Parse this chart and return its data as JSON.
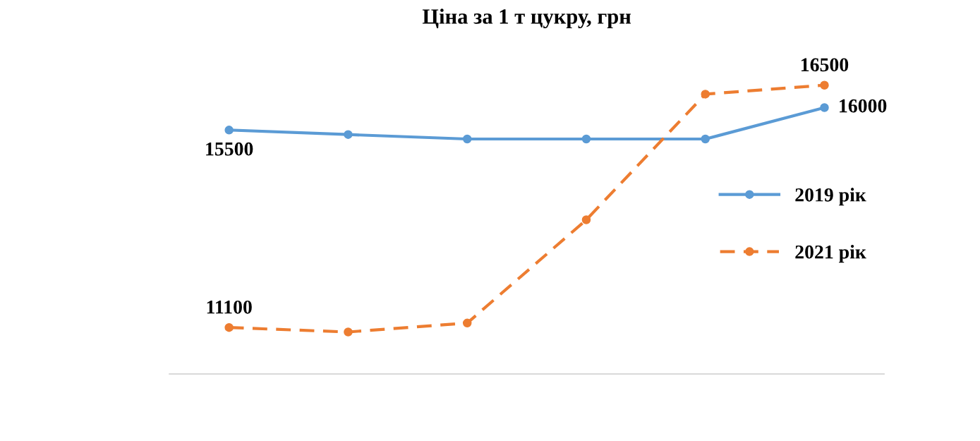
{
  "chart_data": {
    "type": "line",
    "title": "Ціна за 1 т цукру, грн",
    "categories": [
      null,
      null,
      null,
      null,
      null,
      null
    ],
    "legend": "right",
    "marker": "circle",
    "series": [
      {
        "name": "2019 рік",
        "color": "#5b9bd5",
        "line_style": "solid",
        "values": [
          15500,
          15400,
          15300,
          15300,
          15300,
          16000
        ],
        "value_labels": [
          "15500",
          null,
          null,
          null,
          null,
          "16000"
        ]
      },
      {
        "name": "2021 рік",
        "color": "#ed7d31",
        "line_style": "dashed",
        "values": [
          11100,
          11000,
          11200,
          13500,
          16300,
          16500
        ],
        "value_labels": [
          "11100",
          null,
          null,
          null,
          null,
          "16500"
        ]
      }
    ]
  }
}
